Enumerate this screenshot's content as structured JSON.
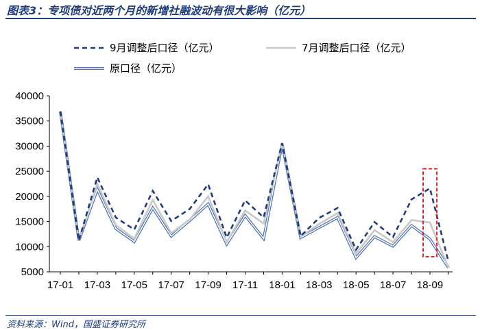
{
  "header": {
    "title": "图表3：专项债对近两个月的新增社融波动有很大影响（亿元）"
  },
  "footer": {
    "source": "资料来源：Wind，国盛证券研究所"
  },
  "chart_data": {
    "type": "line",
    "title": "",
    "xlabel": "",
    "ylabel": "",
    "ylim": [
      5000,
      40000
    ],
    "yticks": [
      5000,
      10000,
      15000,
      20000,
      25000,
      30000,
      35000,
      40000
    ],
    "x": [
      "17-01",
      "17-02",
      "17-03",
      "17-04",
      "17-05",
      "17-06",
      "17-07",
      "17-08",
      "17-09",
      "17-10",
      "17-11",
      "17-12",
      "18-01",
      "18-02",
      "18-03",
      "18-04",
      "18-05",
      "18-06",
      "18-07",
      "18-08",
      "18-09",
      "18-10"
    ],
    "xtick_labels": [
      "17-01",
      "17-03",
      "17-05",
      "17-07",
      "17-09",
      "17-11",
      "18-01",
      "18-03",
      "18-05",
      "18-07",
      "18-09"
    ],
    "series": [
      {
        "name": "9月调整后口径（亿元）",
        "style": "dashed",
        "color": "#1f3d7a",
        "values": [
          36900,
          11200,
          23800,
          15800,
          13400,
          21100,
          15100,
          17500,
          22400,
          11800,
          19200,
          15800,
          30600,
          12100,
          15700,
          17700,
          9400,
          14900,
          11900,
          19400,
          21600,
          7000
        ]
      },
      {
        "name": "7月调整后口径（亿元）",
        "style": "solid",
        "color": "#c8c8c8",
        "values": [
          36900,
          11200,
          22500,
          14300,
          11600,
          19300,
          12700,
          15400,
          20000,
          10900,
          17200,
          14600,
          30500,
          12000,
          14500,
          16700,
          8600,
          13300,
          10900,
          15300,
          14800,
          5800
        ]
      },
      {
        "name": "原口径（亿元）",
        "style": "double",
        "color": "#4f74b9",
        "values": [
          36900,
          11200,
          21400,
          13600,
          11000,
          17700,
          12100,
          15200,
          18500,
          10500,
          16200,
          11600,
          30400,
          11800,
          13800,
          15800,
          7800,
          12000,
          10100,
          14200,
          11500,
          5800
        ]
      }
    ],
    "legend_position": "top",
    "grid": false,
    "annotation": {
      "type": "dashed-box",
      "color": "#e02020",
      "x_index": 20,
      "y_range": [
        8000,
        25500
      ]
    }
  }
}
